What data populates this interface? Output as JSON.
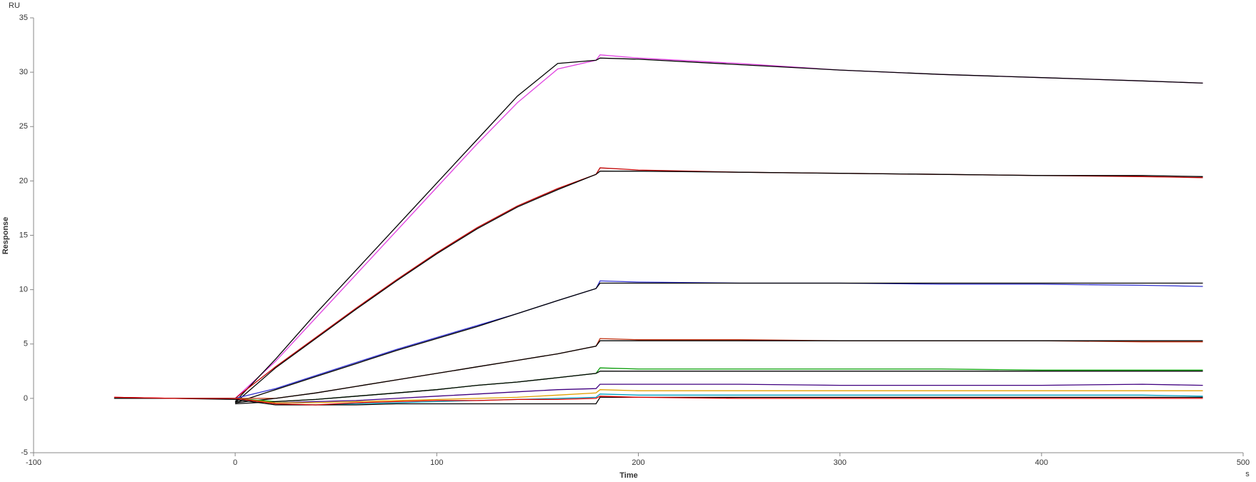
{
  "chart_data": {
    "type": "line",
    "y_unit": "RU",
    "x_unit": "s",
    "xlabel": "Time",
    "ylabel": "Response",
    "x": [
      -60,
      -30,
      0,
      20,
      40,
      60,
      80,
      100,
      120,
      140,
      160,
      179,
      181,
      200,
      250,
      300,
      350,
      400,
      450,
      480
    ],
    "xlim": [
      -100,
      500
    ],
    "xticks": [
      -100,
      0,
      100,
      200,
      300,
      400,
      500
    ],
    "ylim": [
      -5,
      35
    ],
    "yticks": [
      -5,
      0,
      5,
      10,
      15,
      20,
      25,
      30,
      35
    ],
    "series": [
      {
        "color": "#e040e0",
        "values": [
          0.1,
          0,
          0,
          3.4,
          7.4,
          11.4,
          15.4,
          19.4,
          23.4,
          27.2,
          30.3,
          31.1,
          31.6,
          31.3,
          30.8,
          30.2,
          29.8,
          29.5,
          29.2,
          29.0
        ]
      },
      {
        "color": "#000000",
        "values": [
          null,
          null,
          -0.3,
          3.6,
          7.8,
          11.8,
          15.8,
          19.8,
          23.8,
          27.8,
          30.8,
          31.1,
          31.3,
          31.2,
          30.7,
          30.2,
          29.8,
          29.5,
          29.2,
          29.0
        ]
      },
      {
        "color": "#c00000",
        "values": [
          0.1,
          0,
          0,
          2.9,
          5.6,
          8.3,
          10.9,
          13.4,
          15.7,
          17.7,
          19.3,
          20.6,
          21.2,
          21.0,
          20.8,
          20.7,
          20.6,
          20.5,
          20.4,
          20.3
        ]
      },
      {
        "color": "#000000",
        "values": [
          null,
          null,
          -0.4,
          2.8,
          5.5,
          8.2,
          10.8,
          13.3,
          15.6,
          17.6,
          19.2,
          20.6,
          20.9,
          20.9,
          20.8,
          20.7,
          20.6,
          20.5,
          20.5,
          20.4
        ]
      },
      {
        "color": "#3030d0",
        "values": [
          0,
          0,
          0,
          0.9,
          2.1,
          3.3,
          4.5,
          5.6,
          6.7,
          7.8,
          9.0,
          10.1,
          10.8,
          10.7,
          10.6,
          10.6,
          10.5,
          10.5,
          10.4,
          10.3
        ]
      },
      {
        "color": "#000000",
        "values": [
          null,
          null,
          -0.4,
          0.8,
          2.0,
          3.2,
          4.4,
          5.5,
          6.6,
          7.8,
          9.0,
          10.1,
          10.6,
          10.6,
          10.6,
          10.6,
          10.6,
          10.6,
          10.6,
          10.6
        ]
      },
      {
        "color": "#c03010",
        "values": [
          0,
          0,
          0,
          0,
          0.5,
          1.1,
          1.7,
          2.3,
          2.9,
          3.5,
          4.1,
          4.8,
          5.5,
          5.4,
          5.4,
          5.3,
          5.3,
          5.3,
          5.2,
          5.2
        ]
      },
      {
        "color": "#000000",
        "values": [
          null,
          null,
          -0.4,
          0,
          0.5,
          1.1,
          1.7,
          2.3,
          2.9,
          3.5,
          4.1,
          4.8,
          5.3,
          5.3,
          5.3,
          5.3,
          5.3,
          5.3,
          5.3,
          5.3
        ]
      },
      {
        "color": "#10a010",
        "values": [
          0,
          0,
          0,
          -0.3,
          -0.1,
          0.2,
          0.5,
          0.8,
          1.2,
          1.5,
          1.9,
          2.3,
          2.8,
          2.7,
          2.7,
          2.7,
          2.7,
          2.6,
          2.6,
          2.6
        ]
      },
      {
        "color": "#000000",
        "values": [
          null,
          null,
          -0.5,
          -0.3,
          -0.1,
          0.2,
          0.5,
          0.8,
          1.2,
          1.5,
          1.9,
          2.3,
          2.5,
          2.5,
          2.5,
          2.5,
          2.5,
          2.5,
          2.5,
          2.5
        ]
      },
      {
        "color": "#400080",
        "values": [
          0,
          0,
          0,
          -0.4,
          -0.3,
          -0.2,
          0,
          0.2,
          0.4,
          0.6,
          0.8,
          0.9,
          1.3,
          1.3,
          1.3,
          1.2,
          1.2,
          1.2,
          1.3,
          1.2
        ]
      },
      {
        "color": "#e0a000",
        "values": [
          0,
          0,
          0,
          -0.4,
          -0.4,
          -0.3,
          -0.2,
          -0.1,
          0,
          0.1,
          0.3,
          0.5,
          0.8,
          0.7,
          0.7,
          0.7,
          0.7,
          0.7,
          0.7,
          0.7
        ]
      },
      {
        "color": "#00a0c0",
        "values": [
          0,
          0,
          0,
          -0.5,
          -0.6,
          -0.5,
          -0.4,
          -0.3,
          -0.2,
          -0.1,
          0,
          0.1,
          0.4,
          0.3,
          0.3,
          0.3,
          0.3,
          0.3,
          0.3,
          0.2
        ]
      },
      {
        "color": "#000000",
        "values": [
          0,
          0,
          -0.1,
          -0.6,
          -0.6,
          -0.6,
          -0.5,
          -0.5,
          -0.5,
          -0.5,
          -0.5,
          -0.5,
          0.1,
          0.1,
          0.1,
          0.1,
          0.1,
          0.1,
          0.1,
          0.1
        ]
      },
      {
        "color": "#e00000",
        "values": [
          0.1,
          0,
          0,
          -0.5,
          -0.6,
          -0.4,
          -0.3,
          -0.2,
          -0.2,
          -0.1,
          -0.1,
          0,
          0.2,
          0.1,
          0,
          0,
          0,
          0,
          0,
          0
        ]
      }
    ]
  }
}
